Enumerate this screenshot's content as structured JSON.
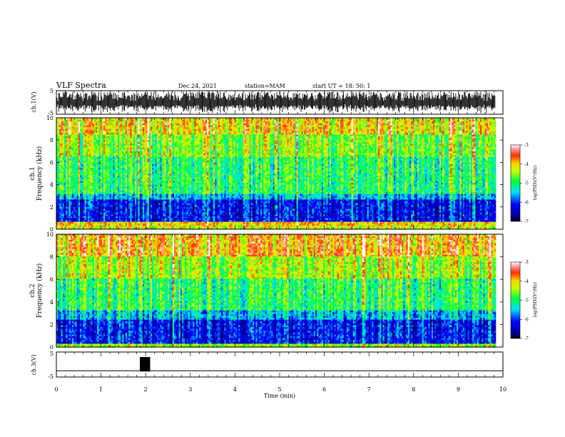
{
  "header": {
    "title": "VLF Spectra",
    "date": "Dec.24, 2021",
    "station": "station=MAM",
    "start": "start UT =  18: 50: 1"
  },
  "chart_data": [
    {
      "type": "line",
      "name": "ch1-waveform",
      "ylabel": "ch.1(V)",
      "ylim": [
        -5,
        5
      ],
      "yticks": [
        "5",
        "-5"
      ],
      "xlim": [
        0,
        10
      ],
      "data_end_min": 9.83,
      "style": "dense-black-burst"
    },
    {
      "type": "heatmap",
      "name": "ch1-spectrogram",
      "ylabel": "ch.1\nFrequency (kHz)",
      "ylim": [
        0,
        10
      ],
      "yticks": [
        "0",
        "2",
        "4",
        "6",
        "8",
        "10"
      ],
      "xlim": [
        0,
        9.83
      ],
      "bands": [
        {
          "from": 0.0,
          "to": 0.35,
          "level": -4.3
        },
        {
          "from": 0.35,
          "to": 0.7,
          "level": -4.0
        },
        {
          "from": 0.7,
          "to": 2.6,
          "level": -6.2
        },
        {
          "from": 2.6,
          "to": 3.2,
          "level": -5.6
        },
        {
          "from": 3.2,
          "to": 6.5,
          "level": -5.0
        },
        {
          "from": 6.5,
          "to": 8.5,
          "level": -4.6
        },
        {
          "from": 8.5,
          "to": 10.0,
          "level": -4.1
        }
      ],
      "colorbar": {
        "label": "log(PSD)(V²/Hz)",
        "range": [
          -7,
          -3
        ],
        "ticks": [
          "-3",
          "-4",
          "-5",
          "-6",
          "-7"
        ]
      }
    },
    {
      "type": "heatmap",
      "name": "ch2-spectrogram",
      "ylabel": "ch.2\nFrequency (kHz)",
      "ylim": [
        0,
        10
      ],
      "yticks": [
        "0",
        "2",
        "4",
        "6",
        "8",
        "10"
      ],
      "xlim": [
        0,
        9.83
      ],
      "bands": [
        {
          "from": 0.0,
          "to": 0.3,
          "level": -4.5
        },
        {
          "from": 0.3,
          "to": 2.5,
          "level": -6.2
        },
        {
          "from": 2.5,
          "to": 3.2,
          "level": -5.6
        },
        {
          "from": 3.2,
          "to": 6.0,
          "level": -5.0
        },
        {
          "from": 6.0,
          "to": 8.0,
          "level": -4.5
        },
        {
          "from": 8.0,
          "to": 10.0,
          "level": -3.9
        }
      ],
      "colorbar": {
        "label": "log(PSD)(V²/Hz)",
        "range": [
          -7,
          -3
        ],
        "ticks": [
          "-3",
          "-4",
          "-5",
          "-6",
          "-7"
        ]
      }
    },
    {
      "type": "line",
      "name": "ch3-signal",
      "ylabel": "ch.3(V)",
      "ylim": [
        -5,
        5
      ],
      "yticks": [
        "5",
        "-5"
      ],
      "xlim": [
        0,
        10
      ],
      "baseline": -2.5,
      "pulse": {
        "start": 1.87,
        "end": 2.1,
        "top": 3.0
      }
    }
  ],
  "xaxis": {
    "label": "Time (min)",
    "range": [
      0,
      10
    ],
    "ticks": [
      "0",
      "1",
      "2",
      "3",
      "4",
      "5",
      "6",
      "7",
      "8",
      "9",
      "10"
    ]
  }
}
